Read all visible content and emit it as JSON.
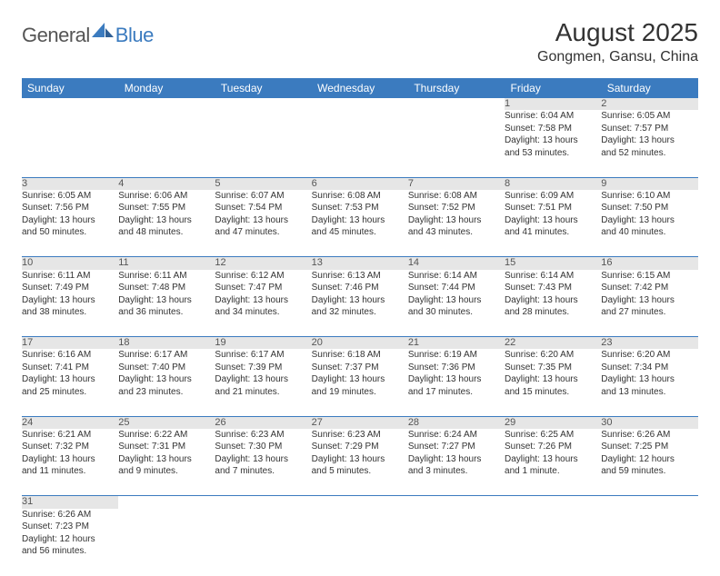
{
  "logo": {
    "part1": "General",
    "part2": "Blue"
  },
  "title": "August 2025",
  "location": "Gongmen, Gansu, China",
  "colors": {
    "header_bg": "#3b7bbf",
    "header_text": "#ffffff",
    "daynum_bg": "#e6e6e6",
    "row_border": "#3b7bbf",
    "body_text": "#333333",
    "logo_gray": "#555555",
    "logo_blue": "#3b7bbf"
  },
  "weekdays": [
    "Sunday",
    "Monday",
    "Tuesday",
    "Wednesday",
    "Thursday",
    "Friday",
    "Saturday"
  ],
  "weeks": [
    [
      null,
      null,
      null,
      null,
      null,
      {
        "n": "1",
        "sr": "Sunrise: 6:04 AM",
        "ss": "Sunset: 7:58 PM",
        "d1": "Daylight: 13 hours",
        "d2": "and 53 minutes."
      },
      {
        "n": "2",
        "sr": "Sunrise: 6:05 AM",
        "ss": "Sunset: 7:57 PM",
        "d1": "Daylight: 13 hours",
        "d2": "and 52 minutes."
      }
    ],
    [
      {
        "n": "3",
        "sr": "Sunrise: 6:05 AM",
        "ss": "Sunset: 7:56 PM",
        "d1": "Daylight: 13 hours",
        "d2": "and 50 minutes."
      },
      {
        "n": "4",
        "sr": "Sunrise: 6:06 AM",
        "ss": "Sunset: 7:55 PM",
        "d1": "Daylight: 13 hours",
        "d2": "and 48 minutes."
      },
      {
        "n": "5",
        "sr": "Sunrise: 6:07 AM",
        "ss": "Sunset: 7:54 PM",
        "d1": "Daylight: 13 hours",
        "d2": "and 47 minutes."
      },
      {
        "n": "6",
        "sr": "Sunrise: 6:08 AM",
        "ss": "Sunset: 7:53 PM",
        "d1": "Daylight: 13 hours",
        "d2": "and 45 minutes."
      },
      {
        "n": "7",
        "sr": "Sunrise: 6:08 AM",
        "ss": "Sunset: 7:52 PM",
        "d1": "Daylight: 13 hours",
        "d2": "and 43 minutes."
      },
      {
        "n": "8",
        "sr": "Sunrise: 6:09 AM",
        "ss": "Sunset: 7:51 PM",
        "d1": "Daylight: 13 hours",
        "d2": "and 41 minutes."
      },
      {
        "n": "9",
        "sr": "Sunrise: 6:10 AM",
        "ss": "Sunset: 7:50 PM",
        "d1": "Daylight: 13 hours",
        "d2": "and 40 minutes."
      }
    ],
    [
      {
        "n": "10",
        "sr": "Sunrise: 6:11 AM",
        "ss": "Sunset: 7:49 PM",
        "d1": "Daylight: 13 hours",
        "d2": "and 38 minutes."
      },
      {
        "n": "11",
        "sr": "Sunrise: 6:11 AM",
        "ss": "Sunset: 7:48 PM",
        "d1": "Daylight: 13 hours",
        "d2": "and 36 minutes."
      },
      {
        "n": "12",
        "sr": "Sunrise: 6:12 AM",
        "ss": "Sunset: 7:47 PM",
        "d1": "Daylight: 13 hours",
        "d2": "and 34 minutes."
      },
      {
        "n": "13",
        "sr": "Sunrise: 6:13 AM",
        "ss": "Sunset: 7:46 PM",
        "d1": "Daylight: 13 hours",
        "d2": "and 32 minutes."
      },
      {
        "n": "14",
        "sr": "Sunrise: 6:14 AM",
        "ss": "Sunset: 7:44 PM",
        "d1": "Daylight: 13 hours",
        "d2": "and 30 minutes."
      },
      {
        "n": "15",
        "sr": "Sunrise: 6:14 AM",
        "ss": "Sunset: 7:43 PM",
        "d1": "Daylight: 13 hours",
        "d2": "and 28 minutes."
      },
      {
        "n": "16",
        "sr": "Sunrise: 6:15 AM",
        "ss": "Sunset: 7:42 PM",
        "d1": "Daylight: 13 hours",
        "d2": "and 27 minutes."
      }
    ],
    [
      {
        "n": "17",
        "sr": "Sunrise: 6:16 AM",
        "ss": "Sunset: 7:41 PM",
        "d1": "Daylight: 13 hours",
        "d2": "and 25 minutes."
      },
      {
        "n": "18",
        "sr": "Sunrise: 6:17 AM",
        "ss": "Sunset: 7:40 PM",
        "d1": "Daylight: 13 hours",
        "d2": "and 23 minutes."
      },
      {
        "n": "19",
        "sr": "Sunrise: 6:17 AM",
        "ss": "Sunset: 7:39 PM",
        "d1": "Daylight: 13 hours",
        "d2": "and 21 minutes."
      },
      {
        "n": "20",
        "sr": "Sunrise: 6:18 AM",
        "ss": "Sunset: 7:37 PM",
        "d1": "Daylight: 13 hours",
        "d2": "and 19 minutes."
      },
      {
        "n": "21",
        "sr": "Sunrise: 6:19 AM",
        "ss": "Sunset: 7:36 PM",
        "d1": "Daylight: 13 hours",
        "d2": "and 17 minutes."
      },
      {
        "n": "22",
        "sr": "Sunrise: 6:20 AM",
        "ss": "Sunset: 7:35 PM",
        "d1": "Daylight: 13 hours",
        "d2": "and 15 minutes."
      },
      {
        "n": "23",
        "sr": "Sunrise: 6:20 AM",
        "ss": "Sunset: 7:34 PM",
        "d1": "Daylight: 13 hours",
        "d2": "and 13 minutes."
      }
    ],
    [
      {
        "n": "24",
        "sr": "Sunrise: 6:21 AM",
        "ss": "Sunset: 7:32 PM",
        "d1": "Daylight: 13 hours",
        "d2": "and 11 minutes."
      },
      {
        "n": "25",
        "sr": "Sunrise: 6:22 AM",
        "ss": "Sunset: 7:31 PM",
        "d1": "Daylight: 13 hours",
        "d2": "and 9 minutes."
      },
      {
        "n": "26",
        "sr": "Sunrise: 6:23 AM",
        "ss": "Sunset: 7:30 PM",
        "d1": "Daylight: 13 hours",
        "d2": "and 7 minutes."
      },
      {
        "n": "27",
        "sr": "Sunrise: 6:23 AM",
        "ss": "Sunset: 7:29 PM",
        "d1": "Daylight: 13 hours",
        "d2": "and 5 minutes."
      },
      {
        "n": "28",
        "sr": "Sunrise: 6:24 AM",
        "ss": "Sunset: 7:27 PM",
        "d1": "Daylight: 13 hours",
        "d2": "and 3 minutes."
      },
      {
        "n": "29",
        "sr": "Sunrise: 6:25 AM",
        "ss": "Sunset: 7:26 PM",
        "d1": "Daylight: 13 hours",
        "d2": "and 1 minute."
      },
      {
        "n": "30",
        "sr": "Sunrise: 6:26 AM",
        "ss": "Sunset: 7:25 PM",
        "d1": "Daylight: 12 hours",
        "d2": "and 59 minutes."
      }
    ],
    [
      {
        "n": "31",
        "sr": "Sunrise: 6:26 AM",
        "ss": "Sunset: 7:23 PM",
        "d1": "Daylight: 12 hours",
        "d2": "and 56 minutes."
      },
      null,
      null,
      null,
      null,
      null,
      null
    ]
  ]
}
